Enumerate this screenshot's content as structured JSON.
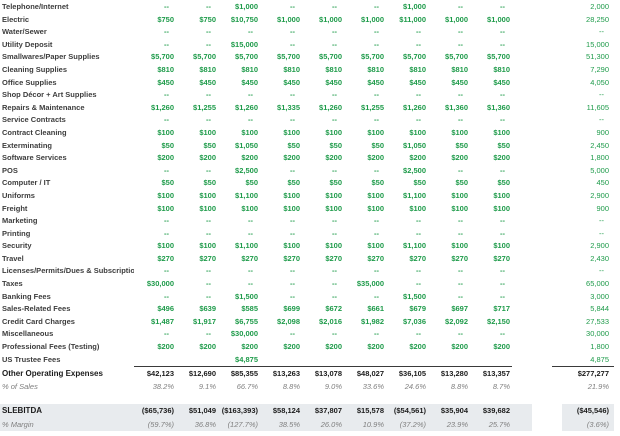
{
  "colors": {
    "value_green": "#1e9b4a",
    "label_dark_gray": "#3d3d3d",
    "summary_black": "#1b1b1b",
    "percent_gray": "#7f7f7f",
    "band_background": "#e8ebee",
    "rule_line": "#3a3a3a"
  },
  "table": {
    "dash": "--",
    "value_columns_count": 9,
    "expense_rows": [
      {
        "label": "Telephone/Internet",
        "values": [
          "--",
          "--",
          "$1,000",
          "--",
          "--",
          "--",
          "$1,000",
          "--",
          "--"
        ],
        "total": "2,000"
      },
      {
        "label": "Electric",
        "values": [
          "$750",
          "$750",
          "$10,750",
          "$1,000",
          "$1,000",
          "$1,000",
          "$11,000",
          "$1,000",
          "$1,000"
        ],
        "total": "28,250"
      },
      {
        "label": "Water/Sewer",
        "values": [
          "--",
          "--",
          "--",
          "--",
          "--",
          "--",
          "--",
          "--",
          "--"
        ],
        "total": "--"
      },
      {
        "label": "Utility Deposit",
        "values": [
          "--",
          "--",
          "$15,000",
          "--",
          "--",
          "--",
          "--",
          "--",
          "--"
        ],
        "total": "15,000"
      },
      {
        "label": "Smallwares/Paper Supplies",
        "values": [
          "$5,700",
          "$5,700",
          "$5,700",
          "$5,700",
          "$5,700",
          "$5,700",
          "$5,700",
          "$5,700",
          "$5,700"
        ],
        "total": "51,300"
      },
      {
        "label": "Cleaning Supplies",
        "values": [
          "$810",
          "$810",
          "$810",
          "$810",
          "$810",
          "$810",
          "$810",
          "$810",
          "$810"
        ],
        "total": "7,290"
      },
      {
        "label": "Office Supplies",
        "values": [
          "$450",
          "$450",
          "$450",
          "$450",
          "$450",
          "$450",
          "$450",
          "$450",
          "$450"
        ],
        "total": "4,050"
      },
      {
        "label": "Shop Décor + Art Supplies",
        "values": [
          "--",
          "--",
          "--",
          "--",
          "--",
          "--",
          "--",
          "--",
          "--"
        ],
        "total": "--"
      },
      {
        "label": "Repairs & Maintenance",
        "values": [
          "$1,260",
          "$1,255",
          "$1,260",
          "$1,335",
          "$1,260",
          "$1,255",
          "$1,260",
          "$1,360",
          "$1,360"
        ],
        "total": "11,605"
      },
      {
        "label": "Service Contracts",
        "values": [
          "--",
          "--",
          "--",
          "--",
          "--",
          "--",
          "--",
          "--",
          "--"
        ],
        "total": "--"
      },
      {
        "label": "Contract Cleaning",
        "values": [
          "$100",
          "$100",
          "$100",
          "$100",
          "$100",
          "$100",
          "$100",
          "$100",
          "$100"
        ],
        "total": "900"
      },
      {
        "label": "Exterminating",
        "values": [
          "$50",
          "$50",
          "$1,050",
          "$50",
          "$50",
          "$50",
          "$1,050",
          "$50",
          "$50"
        ],
        "total": "2,450"
      },
      {
        "label": "Software Services",
        "values": [
          "$200",
          "$200",
          "$200",
          "$200",
          "$200",
          "$200",
          "$200",
          "$200",
          "$200"
        ],
        "total": "1,800"
      },
      {
        "label": "POS",
        "values": [
          "--",
          "--",
          "$2,500",
          "--",
          "--",
          "--",
          "$2,500",
          "--",
          "--"
        ],
        "total": "5,000"
      },
      {
        "label": "Computer / IT",
        "values": [
          "$50",
          "$50",
          "$50",
          "$50",
          "$50",
          "$50",
          "$50",
          "$50",
          "$50"
        ],
        "total": "450"
      },
      {
        "label": "Uniforms",
        "values": [
          "$100",
          "$100",
          "$1,100",
          "$100",
          "$100",
          "$100",
          "$1,100",
          "$100",
          "$100"
        ],
        "total": "2,900"
      },
      {
        "label": "Freight",
        "values": [
          "$100",
          "$100",
          "$100",
          "$100",
          "$100",
          "$100",
          "$100",
          "$100",
          "$100"
        ],
        "total": "900"
      },
      {
        "label": "Marketing",
        "values": [
          "--",
          "--",
          "--",
          "--",
          "--",
          "--",
          "--",
          "--",
          "--"
        ],
        "total": "--"
      },
      {
        "label": "Printing",
        "values": [
          "--",
          "--",
          "--",
          "--",
          "--",
          "--",
          "--",
          "--",
          "--"
        ],
        "total": "--"
      },
      {
        "label": "Security",
        "values": [
          "$100",
          "$100",
          "$1,100",
          "$100",
          "$100",
          "$100",
          "$1,100",
          "$100",
          "$100"
        ],
        "total": "2,900"
      },
      {
        "label": "Travel",
        "values": [
          "$270",
          "$270",
          "$270",
          "$270",
          "$270",
          "$270",
          "$270",
          "$270",
          "$270"
        ],
        "total": "2,430"
      },
      {
        "label": "Licenses/Permits/Dues & Subscriptions",
        "values": [
          "--",
          "--",
          "--",
          "--",
          "--",
          "--",
          "--",
          "--",
          "--"
        ],
        "total": "--"
      },
      {
        "label": "Taxes",
        "values": [
          "$30,000",
          "--",
          "--",
          "--",
          "--",
          "$35,000",
          "--",
          "--",
          "--"
        ],
        "total": "65,000"
      },
      {
        "label": "Banking Fees",
        "values": [
          "--",
          "--",
          "$1,500",
          "--",
          "--",
          "--",
          "$1,500",
          "--",
          "--"
        ],
        "total": "3,000"
      },
      {
        "label": "Sales-Related Fees",
        "values": [
          "$496",
          "$639",
          "$585",
          "$699",
          "$672",
          "$661",
          "$679",
          "$697",
          "$717"
        ],
        "total": "5,844"
      },
      {
        "label": "Credit Card Charges",
        "values": [
          "$1,487",
          "$1,917",
          "$6,755",
          "$2,098",
          "$2,016",
          "$1,982",
          "$7,036",
          "$2,092",
          "$2,150"
        ],
        "total": "27,533"
      },
      {
        "label": "Miscellaneous",
        "values": [
          "--",
          "--",
          "$30,000",
          "--",
          "--",
          "--",
          "--",
          "--",
          "--"
        ],
        "total": "30,000"
      },
      {
        "label": "Professional Fees (Testing)",
        "values": [
          "$200",
          "$200",
          "$200",
          "$200",
          "$200",
          "$200",
          "$200",
          "$200",
          "$200"
        ],
        "total": "1,800"
      },
      {
        "label": "US Trustee Fees",
        "values": [
          "",
          "",
          "$4,875",
          "",
          "",
          "",
          "",
          "",
          ""
        ],
        "total": "4,875"
      }
    ],
    "summary_rows": [
      {
        "id": "other-operating-expenses",
        "label": "Other Operating Expenses",
        "kind": "money",
        "topline": true,
        "band": false,
        "gap_before": false,
        "values": [
          "$42,123",
          "$12,690",
          "$85,355",
          "$13,263",
          "$13,078",
          "$48,027",
          "$36,105",
          "$13,280",
          "$13,357"
        ],
        "total": "$277,277"
      },
      {
        "id": "pct-of-sales",
        "label": "% of Sales",
        "kind": "percent",
        "topline": false,
        "band": false,
        "gap_before": false,
        "values": [
          "38.2%",
          "9.1%",
          "66.7%",
          "8.8%",
          "9.0%",
          "33.6%",
          "24.6%",
          "8.8%",
          "8.7%"
        ],
        "total": "21.9%"
      },
      {
        "id": "slebitda",
        "label": "SLEBITDA",
        "kind": "money",
        "topline": false,
        "band": true,
        "gap_before": true,
        "values": [
          "($65,736)",
          "$51,049",
          "($163,393)",
          "$58,124",
          "$37,807",
          "$15,578",
          "($54,561)",
          "$35,904",
          "$39,682"
        ],
        "total": "($45,546)"
      },
      {
        "id": "pct-margin",
        "label": "% Margin",
        "kind": "percent",
        "topline": false,
        "band": true,
        "gap_before": false,
        "values": [
          "(59.7%)",
          "36.8%",
          "(127.7%)",
          "38.5%",
          "26.0%",
          "10.9%",
          "(37.2%)",
          "23.9%",
          "25.7%"
        ],
        "total": "(3.6%)"
      }
    ]
  }
}
